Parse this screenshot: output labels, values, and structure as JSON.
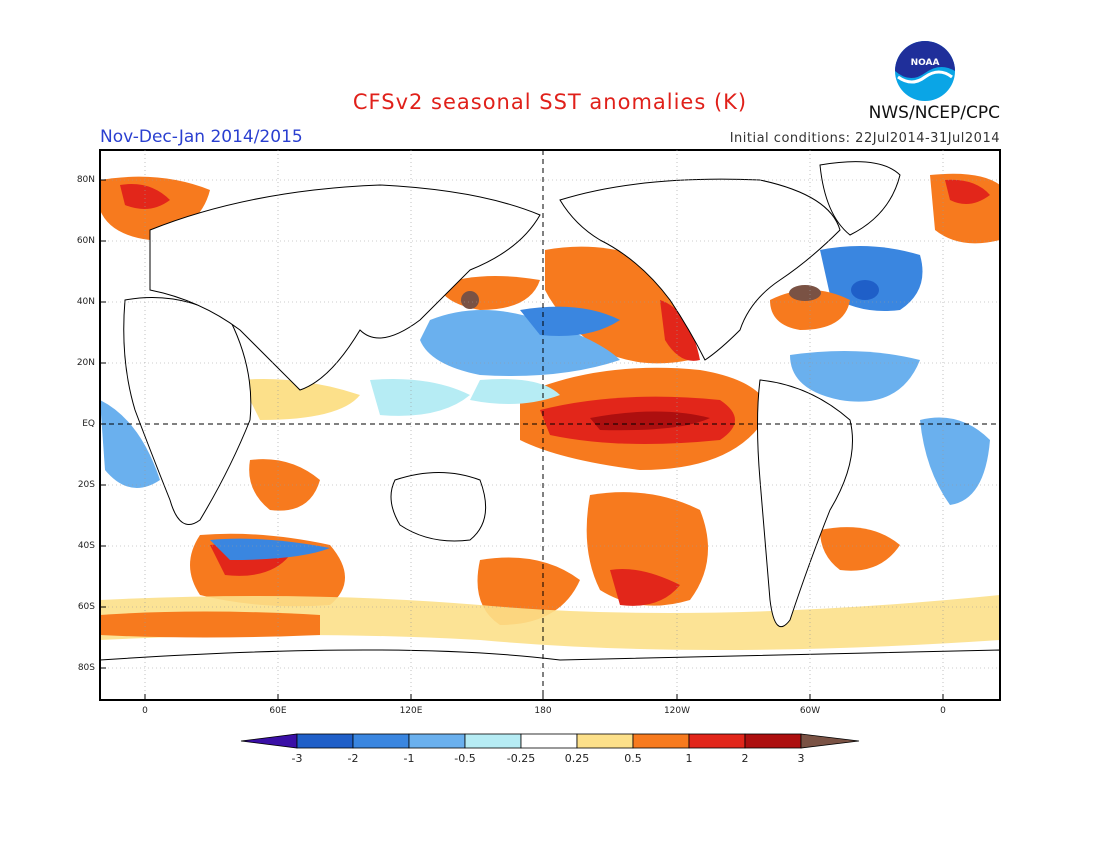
{
  "title": "CFSv2 seasonal SST anomalies (K)",
  "period": "Nov-Dec-Jan 2014/2015",
  "initial_conditions": "Initial conditions: 22Jul2014-31Jul2014",
  "organization": "NWS/NCEP/CPC",
  "logo_text": "NOAA",
  "lat_labels": [
    "80N",
    "60N",
    "40N",
    "20N",
    "EQ",
    "20S",
    "40S",
    "60S",
    "80S"
  ],
  "lon_labels": [
    "0",
    "60E",
    "120E",
    "180",
    "120W",
    "60W",
    "0"
  ],
  "colorbar": {
    "labels": [
      "-3",
      "-2",
      "-1",
      "-0.5",
      "-0.25",
      "0.25",
      "0.5",
      "1",
      "2",
      "3"
    ],
    "colors": [
      "#3a0fa6",
      "#1f5fc8",
      "#3a86e0",
      "#6ab0ee",
      "#b6ecf4",
      "#ffffff",
      "#fce08a",
      "#f77a1e",
      "#e2261a",
      "#ad0f0f",
      "#7a5244"
    ]
  }
}
